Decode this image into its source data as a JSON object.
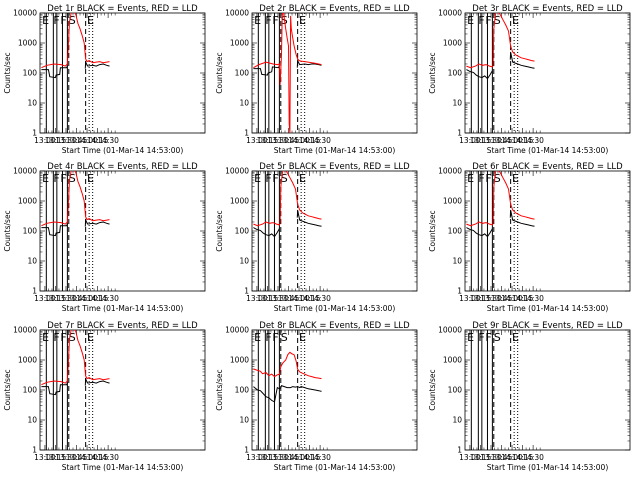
{
  "figure": {
    "background": "#ffffff",
    "colors": {
      "events": "#000000",
      "lld": "#ff0000"
    },
    "xlabel": "Start Time (01-Mar-14 14:53:00)",
    "ylabel": "Counts/sec",
    "xticks": [
      "13:00",
      "13:15",
      "13:30",
      "13:45",
      "14:00",
      "14:15",
      "14:30"
    ],
    "yticks": [
      "1",
      "10",
      "100",
      "1000",
      "10000"
    ],
    "ylim": [
      1,
      10000
    ],
    "xlim_minutes": [
      -120,
      115
    ],
    "x_tick_minutes": [
      -113,
      -98,
      -83,
      -68,
      -53,
      -38,
      -23
    ],
    "solid_lines_minutes": [
      -111,
      -101,
      -96,
      -88,
      -81
    ],
    "dashed_lines_minutes": [
      -79,
      -55
    ],
    "dotted_lines_minutes": [
      -50,
      -45
    ],
    "marker_letters": [
      {
        "label": "E",
        "minute": -117
      },
      {
        "label": "F",
        "minute": -101
      },
      {
        "label": "F",
        "minute": -91
      },
      {
        "label": "S",
        "minute": -79
      },
      {
        "label": "E",
        "minute": -53
      }
    ]
  },
  "chart_data": [
    {
      "type": "line",
      "title": "Det 1r BLACK = Events, RED = LLD",
      "series": [
        {
          "name": "Events",
          "color": "#000000",
          "x": [
            -118,
            -108,
            -106,
            -98,
            -97,
            -92,
            -91,
            -82,
            -81,
            -79,
            -76,
            -73,
            -70,
            -66,
            -62,
            -58,
            -56,
            -55.5,
            -55,
            -52,
            -45,
            -40,
            -35,
            -30,
            -25,
            -21
          ],
          "y": [
            130,
            130,
            75,
            70,
            85,
            90,
            150,
            150,
            175,
            null,
            null,
            null,
            null,
            null,
            null,
            null,
            null,
            140,
            230,
            170,
            180,
            170,
            190,
            200,
            180,
            170
          ]
        },
        {
          "name": "LLD",
          "color": "#ff0000",
          "x": [
            -118,
            -110,
            -100,
            -90,
            -84,
            -81,
            -78,
            -75,
            -72,
            -69,
            -66,
            -63,
            -60,
            -57,
            -55,
            -53,
            -50,
            -45,
            -40,
            -35,
            -30,
            -25,
            -21
          ],
          "y": [
            150,
            180,
            200,
            190,
            170,
            200,
            5000,
            12000,
            11000,
            9000,
            4500,
            3000,
            1800,
            1000,
            300,
            240,
            260,
            220,
            230,
            240,
            220,
            230,
            240
          ]
        }
      ]
    },
    {
      "type": "line",
      "title": "Det 2r BLACK = Events, RED = LLD",
      "series": [
        {
          "name": "Events",
          "color": "#000000",
          "x": [
            -118,
            -108,
            -106,
            -98,
            -97,
            -92,
            -91,
            -82,
            -81,
            -79,
            -76,
            -73,
            -70,
            -66,
            -62,
            -58,
            -56,
            -55.5,
            -55,
            -52,
            -45,
            -40,
            -35,
            -30,
            -25,
            -21
          ],
          "y": [
            140,
            140,
            90,
            85,
            100,
            110,
            160,
            150,
            180,
            null,
            null,
            null,
            null,
            null,
            null,
            null,
            null,
            150,
            260,
            190,
            200,
            190,
            200,
            200,
            190,
            180
          ]
        },
        {
          "name": "LLD",
          "color": "#ff0000",
          "x": [
            -118,
            -110,
            -100,
            -90,
            -84,
            -81,
            -80,
            -78,
            -77,
            -76,
            -75,
            -72,
            -70,
            -68,
            -67,
            -66,
            -65,
            -64,
            -62,
            -60,
            -57,
            -55,
            -53,
            -50,
            -45,
            -40,
            -35,
            -30,
            -25,
            -21
          ],
          "y": [
            150,
            190,
            230,
            200,
            190,
            200,
            40,
            400,
            8000,
            12000,
            10000,
            3000,
            1500,
            800,
            2,
            1,
            8000,
            3000,
            1500,
            800,
            400,
            300,
            260,
            250,
            240,
            230,
            220,
            210,
            200,
            190
          ]
        }
      ]
    },
    {
      "type": "line",
      "title": "Det 3r BLACK = Events, RED = LLD",
      "series": [
        {
          "name": "Events",
          "color": "#000000",
          "x": [
            -118,
            -112,
            -108,
            -104,
            -100,
            -96,
            -92,
            -88,
            -84,
            -81,
            -79,
            -78,
            -75,
            -70,
            -65,
            -60,
            -56,
            -55.5,
            -55,
            -52,
            -45,
            -40,
            -35,
            -30,
            -25,
            -21
          ],
          "y": [
            130,
            110,
            105,
            85,
            75,
            70,
            80,
            65,
            90,
            120,
            null,
            null,
            null,
            null,
            null,
            null,
            null,
            280,
            500,
            230,
            200,
            180,
            170,
            160,
            150,
            145
          ]
        },
        {
          "name": "LLD",
          "color": "#ff0000",
          "x": [
            -118,
            -112,
            -105,
            -100,
            -95,
            -90,
            -85,
            -81,
            -80,
            -79,
            -76,
            -73,
            -70,
            -66,
            -62,
            -58,
            -55,
            -52,
            -48,
            -44,
            -40,
            -35,
            -30,
            -25,
            -21
          ],
          "y": [
            170,
            150,
            170,
            200,
            180,
            190,
            170,
            160,
            180,
            3000,
            12000,
            11000,
            9000,
            6000,
            4000,
            2500,
            800,
            500,
            400,
            360,
            320,
            300,
            280,
            260,
            250
          ]
        }
      ]
    },
    {
      "type": "line",
      "title": "Det 4r BLACK = Events, RED = LLD",
      "series": [
        {
          "name": "Events",
          "color": "#000000",
          "x": [
            -118,
            -108,
            -106,
            -98,
            -97,
            -92,
            -91,
            -82,
            -81,
            -79,
            -76,
            -73,
            -70,
            -66,
            -62,
            -58,
            -56,
            -55.5,
            -55,
            -52,
            -45,
            -40,
            -35,
            -30,
            -25,
            -21
          ],
          "y": [
            130,
            130,
            75,
            70,
            85,
            90,
            150,
            150,
            175,
            null,
            null,
            null,
            null,
            null,
            null,
            null,
            null,
            140,
            230,
            170,
            180,
            170,
            190,
            200,
            180,
            170
          ]
        },
        {
          "name": "LLD",
          "color": "#ff0000",
          "x": [
            -118,
            -110,
            -100,
            -90,
            -84,
            -81,
            -78,
            -75,
            -72,
            -69,
            -66,
            -63,
            -60,
            -57,
            -55,
            -53,
            -50,
            -45,
            -40,
            -35,
            -30,
            -25,
            -21
          ],
          "y": [
            150,
            180,
            200,
            190,
            170,
            200,
            5000,
            12000,
            11000,
            9000,
            4500,
            3000,
            1800,
            1000,
            300,
            240,
            260,
            220,
            230,
            240,
            220,
            230,
            240
          ]
        }
      ]
    },
    {
      "type": "line",
      "title": "Det 5r BLACK = Events, RED = LLD",
      "series": [
        {
          "name": "Events",
          "color": "#000000",
          "x": [
            -118,
            -112,
            -108,
            -104,
            -100,
            -96,
            -92,
            -88,
            -84,
            -81,
            -79,
            -78,
            -75,
            -70,
            -65,
            -60,
            -56,
            -55.5,
            -55,
            -52,
            -45,
            -40,
            -35,
            -30,
            -25,
            -21
          ],
          "y": [
            130,
            110,
            105,
            85,
            75,
            70,
            80,
            65,
            90,
            120,
            null,
            null,
            null,
            null,
            null,
            null,
            null,
            280,
            500,
            230,
            200,
            180,
            170,
            160,
            150,
            145
          ]
        },
        {
          "name": "LLD",
          "color": "#ff0000",
          "x": [
            -118,
            -112,
            -105,
            -100,
            -95,
            -90,
            -85,
            -81,
            -80,
            -79,
            -76,
            -73,
            -70,
            -66,
            -62,
            -58,
            -55,
            -52,
            -48,
            -44,
            -40,
            -35,
            -30,
            -25,
            -21
          ],
          "y": [
            170,
            150,
            170,
            200,
            180,
            190,
            170,
            160,
            180,
            3000,
            12000,
            11000,
            9000,
            6000,
            4000,
            2500,
            800,
            500,
            400,
            360,
            320,
            300,
            280,
            260,
            250
          ]
        }
      ]
    },
    {
      "type": "line",
      "title": "Det 6r BLACK = Events, RED = LLD",
      "series": [
        {
          "name": "Events",
          "color": "#000000",
          "x": [
            -118,
            -112,
            -108,
            -104,
            -100,
            -96,
            -92,
            -88,
            -84,
            -81,
            -79,
            -78,
            -75,
            -70,
            -65,
            -60,
            -56,
            -55.5,
            -55,
            -52,
            -45,
            -40,
            -35,
            -30,
            -25,
            -21
          ],
          "y": [
            130,
            110,
            105,
            85,
            75,
            70,
            80,
            65,
            90,
            120,
            null,
            null,
            null,
            null,
            null,
            null,
            null,
            280,
            500,
            230,
            200,
            180,
            170,
            160,
            150,
            145
          ]
        },
        {
          "name": "LLD",
          "color": "#ff0000",
          "x": [
            -118,
            -112,
            -105,
            -100,
            -95,
            -90,
            -85,
            -81,
            -80,
            -79,
            -76,
            -73,
            -70,
            -66,
            -62,
            -58,
            -55,
            -52,
            -48,
            -44,
            -40,
            -35,
            -30,
            -25,
            -21
          ],
          "y": [
            170,
            150,
            170,
            200,
            180,
            190,
            170,
            160,
            180,
            3000,
            12000,
            11000,
            9000,
            6000,
            4000,
            2500,
            800,
            500,
            400,
            360,
            320,
            300,
            280,
            260,
            250
          ]
        }
      ]
    },
    {
      "type": "line",
      "title": "Det 7r BLACK = Events, RED = LLD",
      "series": [
        {
          "name": "Events",
          "color": "#000000",
          "x": [
            -118,
            -108,
            -106,
            -98,
            -97,
            -92,
            -91,
            -82,
            -81,
            -79,
            -76,
            -73,
            -70,
            -66,
            -62,
            -58,
            -56,
            -55.5,
            -55,
            -52,
            -45,
            -40,
            -35,
            -30,
            -25,
            -21
          ],
          "y": [
            130,
            130,
            75,
            70,
            85,
            90,
            150,
            150,
            175,
            null,
            null,
            null,
            null,
            null,
            null,
            null,
            null,
            140,
            230,
            170,
            180,
            170,
            190,
            200,
            180,
            170
          ]
        },
        {
          "name": "LLD",
          "color": "#ff0000",
          "x": [
            -118,
            -110,
            -100,
            -90,
            -84,
            -81,
            -78,
            -75,
            -72,
            -69,
            -66,
            -63,
            -60,
            -57,
            -55,
            -53,
            -50,
            -45,
            -40,
            -35,
            -30,
            -25,
            -21
          ],
          "y": [
            150,
            180,
            200,
            190,
            170,
            200,
            5000,
            12000,
            11000,
            9000,
            4500,
            3000,
            1800,
            1000,
            300,
            240,
            260,
            220,
            230,
            240,
            220,
            230,
            240
          ]
        }
      ]
    },
    {
      "type": "line",
      "title": "Det 8r BLACK = Events, RED = LLD",
      "series": [
        {
          "name": "Events",
          "color": "#000000",
          "x": [
            -118,
            -112,
            -108,
            -105,
            -100,
            -96,
            -92,
            -88,
            -84,
            -81,
            -79,
            -78,
            -74,
            -70,
            -65,
            -62,
            -58,
            -55,
            -52,
            -50,
            -45,
            -40,
            -35,
            -30,
            -25,
            -21
          ],
          "y": [
            130,
            100,
            95,
            80,
            60,
            55,
            45,
            40,
            120,
            110,
            120,
            140,
            130,
            120,
            120,
            130,
            125,
            130,
            120,
            130,
            120,
            110,
            105,
            100,
            95,
            90
          ]
        },
        {
          "name": "LLD",
          "color": "#ff0000",
          "x": [
            -118,
            -112,
            -108,
            -105,
            -100,
            -96,
            -92,
            -88,
            -84,
            -81,
            -79,
            -76,
            -72,
            -69,
            -66,
            -63,
            -60,
            -57,
            -55,
            -52,
            -48,
            -44,
            -40,
            -35,
            -30,
            -25,
            -21
          ],
          "y": [
            500,
            450,
            420,
            350,
            380,
            300,
            340,
            280,
            320,
            330,
            600,
            800,
            1000,
            1500,
            1800,
            1600,
            1500,
            900,
            500,
            400,
            360,
            330,
            300,
            280,
            260,
            250,
            240
          ]
        }
      ]
    },
    {
      "type": "line",
      "title": "Det 9r BLACK = Events, RED = LLD",
      "series": []
    }
  ]
}
